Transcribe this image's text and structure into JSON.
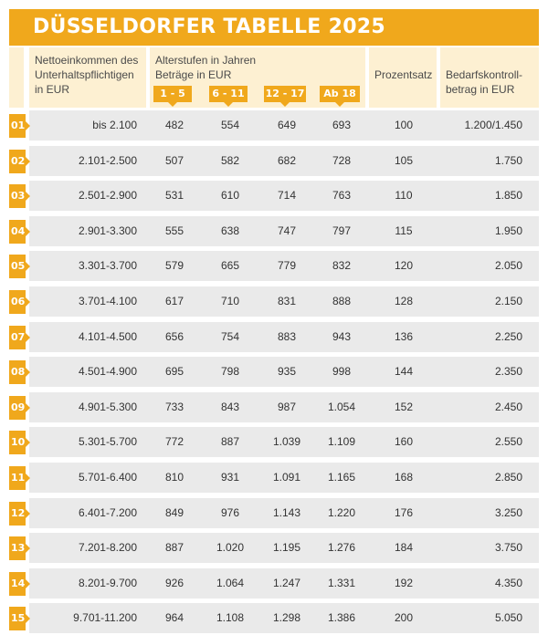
{
  "title": "DÜSSELDORFER TABELLE 2025",
  "headers": {
    "income_lines": [
      "Nettoeinkommen des",
      "Unterhaltspflichtigen",
      "in EUR"
    ],
    "age_lines": [
      "Alterstufen in Jahren",
      "Beträge in EUR"
    ],
    "age_groups": [
      "1 - 5",
      "6 - 11",
      "12 - 17",
      "Ab 18"
    ],
    "percent": "Prozentsatz",
    "control_lines": [
      "Bedarfskontroll-",
      "betrag in EUR"
    ]
  },
  "rows": [
    {
      "num": "01",
      "income": "bis 2.100",
      "a1": "482",
      "a2": "554",
      "a3": "649",
      "a4": "693",
      "pct": "100",
      "control": "1.200/1.450"
    },
    {
      "num": "02",
      "income": "2.101-2.500",
      "a1": "507",
      "a2": "582",
      "a3": "682",
      "a4": "728",
      "pct": "105",
      "control": "1.750"
    },
    {
      "num": "03",
      "income": "2.501-2.900",
      "a1": "531",
      "a2": "610",
      "a3": "714",
      "a4": "763",
      "pct": "110",
      "control": "1.850"
    },
    {
      "num": "04",
      "income": "2.901-3.300",
      "a1": "555",
      "a2": "638",
      "a3": "747",
      "a4": "797",
      "pct": "115",
      "control": "1.950"
    },
    {
      "num": "05",
      "income": "3.301-3.700",
      "a1": "579",
      "a2": "665",
      "a3": "779",
      "a4": "832",
      "pct": "120",
      "control": "2.050"
    },
    {
      "num": "06",
      "income": "3.701-4.100",
      "a1": "617",
      "a2": "710",
      "a3": "831",
      "a4": "888",
      "pct": "128",
      "control": "2.150"
    },
    {
      "num": "07",
      "income": "4.101-4.500",
      "a1": "656",
      "a2": "754",
      "a3": "883",
      "a4": "943",
      "pct": "136",
      "control": "2.250"
    },
    {
      "num": "08",
      "income": "4.501-4.900",
      "a1": "695",
      "a2": "798",
      "a3": "935",
      "a4": "998",
      "pct": "144",
      "control": "2.350"
    },
    {
      "num": "09",
      "income": "4.901-5.300",
      "a1": "733",
      "a2": "843",
      "a3": "987",
      "a4": "1.054",
      "pct": "152",
      "control": "2.450"
    },
    {
      "num": "10",
      "income": "5.301-5.700",
      "a1": "772",
      "a2": "887",
      "a3": "1.039",
      "a4": "1.109",
      "pct": "160",
      "control": "2.550"
    },
    {
      "num": "11",
      "income": "5.701-6.400",
      "a1": "810",
      "a2": "931",
      "a3": "1.091",
      "a4": "1.165",
      "pct": "168",
      "control": "2.850"
    },
    {
      "num": "12",
      "income": "6.401-7.200",
      "a1": "849",
      "a2": "976",
      "a3": "1.143",
      "a4": "1.220",
      "pct": "176",
      "control": "3.250"
    },
    {
      "num": "13",
      "income": "7.201-8.200",
      "a1": "887",
      "a2": "1.020",
      "a3": "1.195",
      "a4": "1.276",
      "pct": "184",
      "control": "3.750"
    },
    {
      "num": "14",
      "income": "8.201-9.700",
      "a1": "926",
      "a2": "1.064",
      "a3": "1.247",
      "a4": "1.331",
      "pct": "192",
      "control": "4.350"
    },
    {
      "num": "15",
      "income": "9.701-11.200",
      "a1": "964",
      "a2": "1.108",
      "a3": "1.298",
      "a4": "1.386",
      "pct": "200",
      "control": "5.050"
    }
  ],
  "colors": {
    "accent": "#f0a81c",
    "header_bg": "#fdf0d2",
    "row_bg": "#eaeaea"
  }
}
